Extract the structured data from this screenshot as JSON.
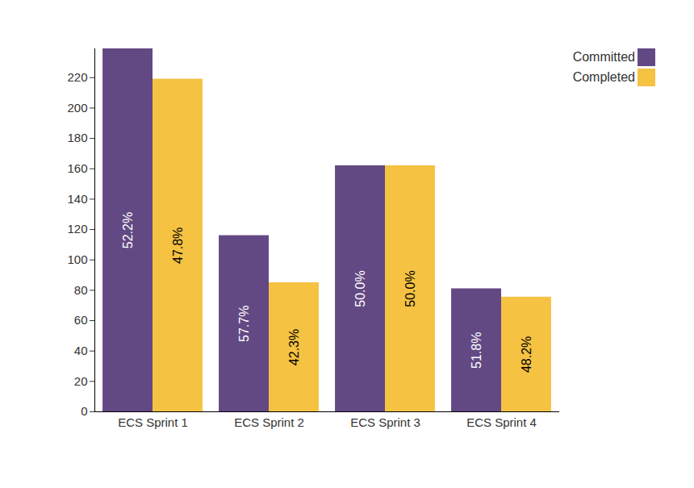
{
  "chart_data": {
    "type": "bar",
    "categories": [
      "ECS Sprint 1",
      "ECS Sprint 2",
      "ECS Sprint 3",
      "ECS Sprint 4"
    ],
    "series": [
      {
        "name": "Committed",
        "color": "#634983",
        "values": [
          239,
          116,
          162,
          81
        ],
        "percent_labels": [
          "52.2%",
          "57.7%",
          "50.0%",
          "51.8%"
        ]
      },
      {
        "name": "Completed",
        "color": "#f5c242",
        "values": [
          219,
          85,
          162,
          75.5
        ],
        "percent_labels": [
          "47.8%",
          "42.3%",
          "50.0%",
          "48.2%"
        ]
      }
    ],
    "ylim": [
      0,
      239
    ],
    "yticks": [
      0,
      20,
      40,
      60,
      80,
      100,
      120,
      140,
      160,
      180,
      200,
      220
    ],
    "grid": false,
    "legend": "top-right"
  }
}
